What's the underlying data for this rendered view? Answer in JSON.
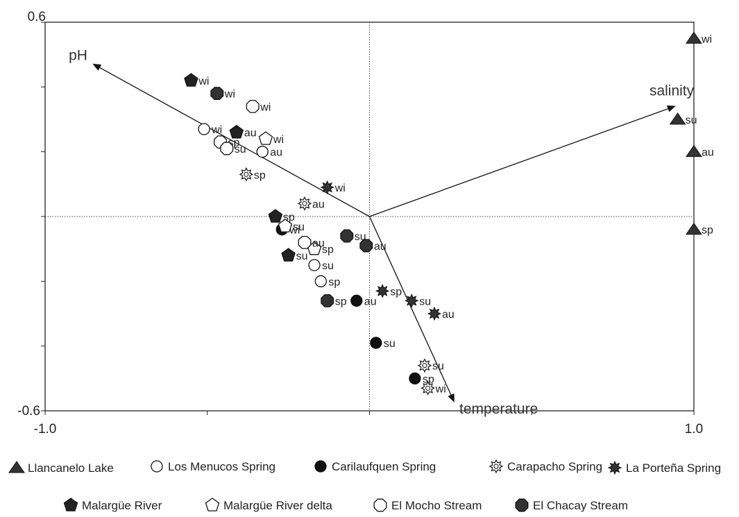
{
  "chart_data": {
    "type": "scatter",
    "xlim": [
      -1.0,
      1.0
    ],
    "ylim": [
      -0.6,
      0.6
    ],
    "x_tick_labels": [
      "-1.0",
      "1.0"
    ],
    "y_tick_labels": [
      "0.6",
      "-0.6"
    ],
    "grid": false,
    "reference_lines": "dotted lines at x=0 and y=0",
    "vectors": [
      {
        "label": "pH",
        "x": -0.85,
        "y": 0.47
      },
      {
        "label": "salinity",
        "x": 0.94,
        "y": 0.34
      },
      {
        "label": "temperature",
        "x": 0.26,
        "y": -0.57
      }
    ],
    "legend_position": "bottom",
    "series": [
      {
        "name": "Llancanelo Lake",
        "marker": "triangle",
        "fill": "#333333",
        "points": [
          {
            "x": 1.0,
            "y": 0.55,
            "label": "wi"
          },
          {
            "x": 0.95,
            "y": 0.3,
            "label": "su"
          },
          {
            "x": 1.0,
            "y": 0.2,
            "label": "au"
          },
          {
            "x": 1.0,
            "y": -0.04,
            "label": "sp"
          }
        ]
      },
      {
        "name": "Los Menucos Spring",
        "marker": "circle",
        "fill": "#ffffff",
        "points": [
          {
            "x": -0.51,
            "y": 0.27,
            "label": "wi"
          },
          {
            "x": -0.33,
            "y": 0.2,
            "label": "au"
          },
          {
            "x": -0.17,
            "y": -0.15,
            "label": "su"
          },
          {
            "x": -0.15,
            "y": -0.2,
            "label": "sp"
          }
        ]
      },
      {
        "name": "Carilaufquen Spring",
        "marker": "circle",
        "fill": "#111111",
        "points": [
          {
            "x": -0.27,
            "y": -0.04,
            "label": "wi"
          },
          {
            "x": -0.04,
            "y": -0.26,
            "label": "au"
          },
          {
            "x": 0.02,
            "y": -0.39,
            "label": "su"
          },
          {
            "x": 0.14,
            "y": -0.5,
            "label": "sp"
          }
        ]
      },
      {
        "name": "Carapacho Spring",
        "marker": "sun",
        "fill": "#ffffff",
        "points": [
          {
            "x": -0.38,
            "y": 0.13,
            "label": "sp"
          },
          {
            "x": -0.2,
            "y": 0.04,
            "label": "au"
          },
          {
            "x": 0.17,
            "y": -0.46,
            "label": "su"
          },
          {
            "x": 0.18,
            "y": -0.53,
            "label": "wi"
          }
        ]
      },
      {
        "name": "La Porteña Spring",
        "marker": "star",
        "fill": "#333333",
        "points": [
          {
            "x": -0.13,
            "y": 0.09,
            "label": "wi"
          },
          {
            "x": 0.04,
            "y": -0.23,
            "label": "sp"
          },
          {
            "x": 0.13,
            "y": -0.26,
            "label": "su"
          },
          {
            "x": 0.2,
            "y": -0.3,
            "label": "au"
          }
        ]
      },
      {
        "name": "Malargüe River",
        "marker": "pentagon",
        "fill": "#222222",
        "points": [
          {
            "x": -0.55,
            "y": 0.42,
            "label": "wi"
          },
          {
            "x": -0.41,
            "y": 0.26,
            "label": "au"
          },
          {
            "x": -0.29,
            "y": 0.0,
            "label": "sp"
          },
          {
            "x": -0.25,
            "y": -0.12,
            "label": "su"
          }
        ]
      },
      {
        "name": "Malargüe River delta",
        "marker": "pentagon",
        "fill": "#ffffff",
        "points": [
          {
            "x": -0.32,
            "y": 0.24,
            "label": "wi"
          },
          {
            "x": -0.26,
            "y": -0.03,
            "label": "su"
          },
          {
            "x": -0.17,
            "y": -0.1,
            "label": "sp"
          }
        ]
      },
      {
        "name": "El Mocho Stream",
        "marker": "hexagon",
        "fill": "#ffffff",
        "points": [
          {
            "x": -0.36,
            "y": 0.34,
            "label": "wi"
          },
          {
            "x": -0.46,
            "y": 0.23,
            "label": "sp"
          },
          {
            "x": -0.44,
            "y": 0.21,
            "label": "su"
          },
          {
            "x": -0.2,
            "y": -0.08,
            "label": "au"
          }
        ]
      },
      {
        "name": "El Chacay Stream",
        "marker": "hexagon",
        "fill": "#333333",
        "points": [
          {
            "x": -0.47,
            "y": 0.38,
            "label": "wi"
          },
          {
            "x": -0.07,
            "y": -0.06,
            "label": "su"
          },
          {
            "x": -0.01,
            "y": -0.09,
            "label": "au"
          },
          {
            "x": -0.13,
            "y": -0.26,
            "label": "sp"
          }
        ]
      }
    ]
  }
}
